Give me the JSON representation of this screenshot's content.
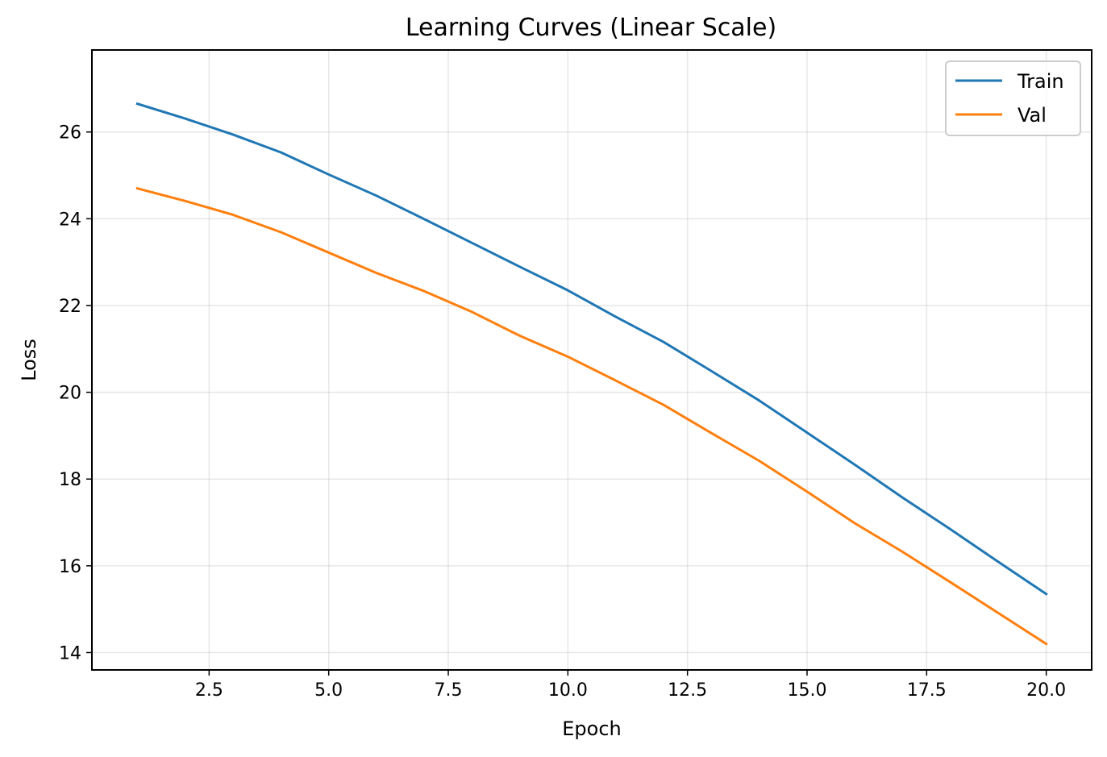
{
  "chart_data": {
    "type": "line",
    "title": "Learning Curves (Linear Scale)",
    "xlabel": "Epoch",
    "ylabel": "Loss",
    "x": [
      1,
      2,
      3,
      4,
      5,
      6,
      7,
      8,
      9,
      10,
      11,
      12,
      13,
      14,
      15,
      16,
      17,
      18,
      19,
      20
    ],
    "series": [
      {
        "name": "Train",
        "color": "#1f77b4",
        "values": [
          26.65,
          26.31,
          25.94,
          25.53,
          25.02,
          24.53,
          23.99,
          23.44,
          22.89,
          22.35,
          21.74,
          21.16,
          20.49,
          19.81,
          19.07,
          18.33,
          17.57,
          16.84,
          16.09,
          15.35
        ]
      },
      {
        "name": "Val",
        "color": "#ff7f0e",
        "values": [
          24.7,
          24.41,
          24.09,
          23.69,
          23.22,
          22.75,
          22.33,
          21.85,
          21.3,
          20.82,
          20.27,
          19.71,
          19.06,
          18.42,
          17.71,
          16.98,
          16.32,
          15.62,
          14.91,
          14.2
        ]
      }
    ],
    "xlim": [
      0.05,
      20.95
    ],
    "ylim": [
      13.6,
      27.89
    ],
    "xticks": [
      2.5,
      5.0,
      7.5,
      10.0,
      12.5,
      15.0,
      17.5,
      20.0
    ],
    "xtick_labels": [
      "2.5",
      "5.0",
      "7.5",
      "10.0",
      "12.5",
      "15.0",
      "17.5",
      "20.0"
    ],
    "yticks": [
      14,
      16,
      18,
      20,
      22,
      24,
      26
    ],
    "ytick_labels": [
      "14",
      "16",
      "18",
      "20",
      "22",
      "24",
      "26"
    ],
    "grid": true,
    "legend_position": "top-right"
  }
}
